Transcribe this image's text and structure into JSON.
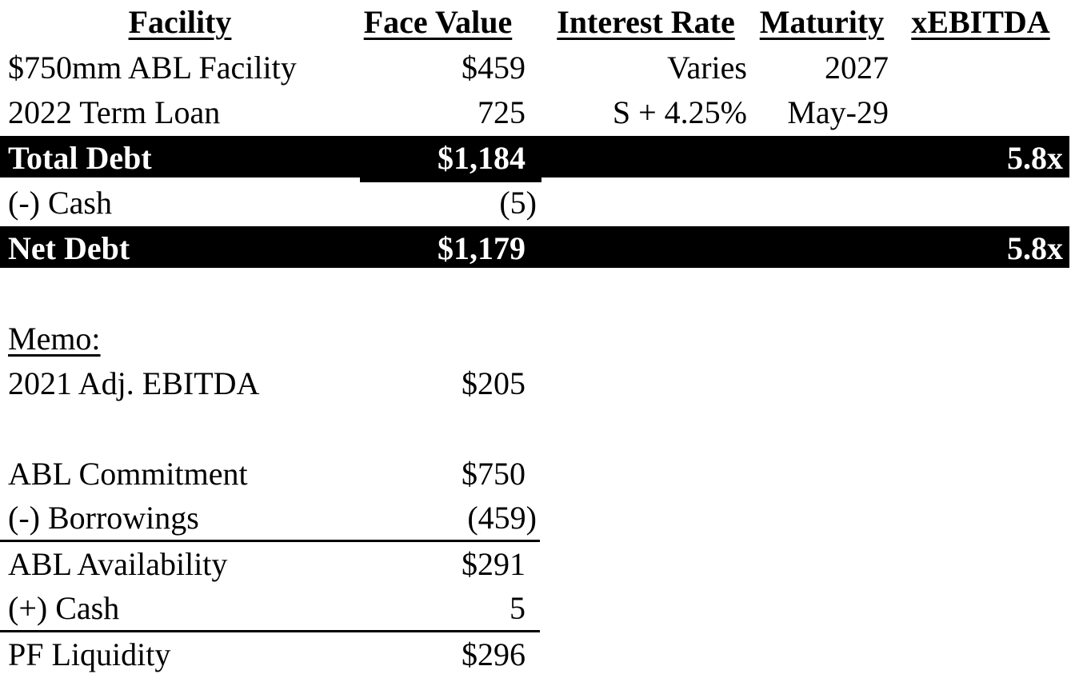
{
  "table": {
    "columns": {
      "facility": "Facility",
      "face_value": "Face Value",
      "interest_rate": "Interest Rate",
      "maturity": "Maturity",
      "xebitda": "xEBITDA"
    },
    "rows": [
      {
        "facility": "$750mm ABL Facility",
        "face_value": "$459",
        "interest_rate": "Varies",
        "maturity": "2027",
        "xebitda": ""
      },
      {
        "facility": "2022 Term Loan",
        "face_value": "725",
        "interest_rate": "S + 4.25%",
        "maturity": "May-29",
        "xebitda": ""
      },
      {
        "facility": "Total Debt",
        "face_value": "$1,184",
        "interest_rate": "",
        "maturity": "",
        "xebitda": "5.8x"
      },
      {
        "facility": "(-) Cash",
        "face_value": "(5)",
        "interest_rate": "",
        "maturity": "",
        "xebitda": ""
      },
      {
        "facility": "Net Debt",
        "face_value": "$1,179",
        "interest_rate": "",
        "maturity": "",
        "xebitda": "5.8x"
      }
    ]
  },
  "memo": {
    "title": "Memo:",
    "rows": [
      {
        "label": "2021 Adj. EBITDA",
        "value": "$205"
      },
      {
        "label": "ABL Commitment",
        "value": "$750"
      },
      {
        "label": "(-) Borrowings",
        "value": "(459)"
      },
      {
        "label": "ABL Availability",
        "value": "$291"
      },
      {
        "label": "(+) Cash",
        "value": "5"
      },
      {
        "label": "PF Liquidity",
        "value": "$296"
      }
    ]
  },
  "colors": {
    "background": "#ffffff",
    "text": "#000000",
    "bar_background": "#000000",
    "bar_text": "#ffffff"
  }
}
